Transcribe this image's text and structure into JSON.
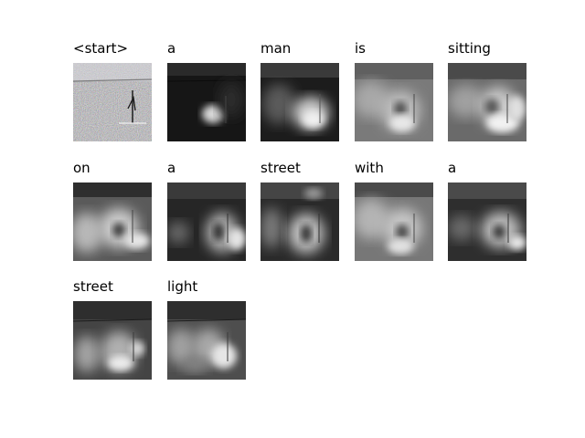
{
  "figure": {
    "panels": [
      {
        "word": "<start>",
        "image": "noisy-street-scene"
      },
      {
        "word": "a",
        "image": "attention-map"
      },
      {
        "word": "man",
        "image": "attention-map"
      },
      {
        "word": "is",
        "image": "attention-map"
      },
      {
        "word": "sitting",
        "image": "attention-map"
      },
      {
        "word": "on",
        "image": "attention-map"
      },
      {
        "word": "a",
        "image": "attention-map"
      },
      {
        "word": "street",
        "image": "attention-map"
      },
      {
        "word": "with",
        "image": "attention-map"
      },
      {
        "word": "a",
        "image": "attention-map"
      },
      {
        "word": "street",
        "image": "attention-map"
      },
      {
        "word": "light",
        "image": "attention-map"
      }
    ]
  }
}
